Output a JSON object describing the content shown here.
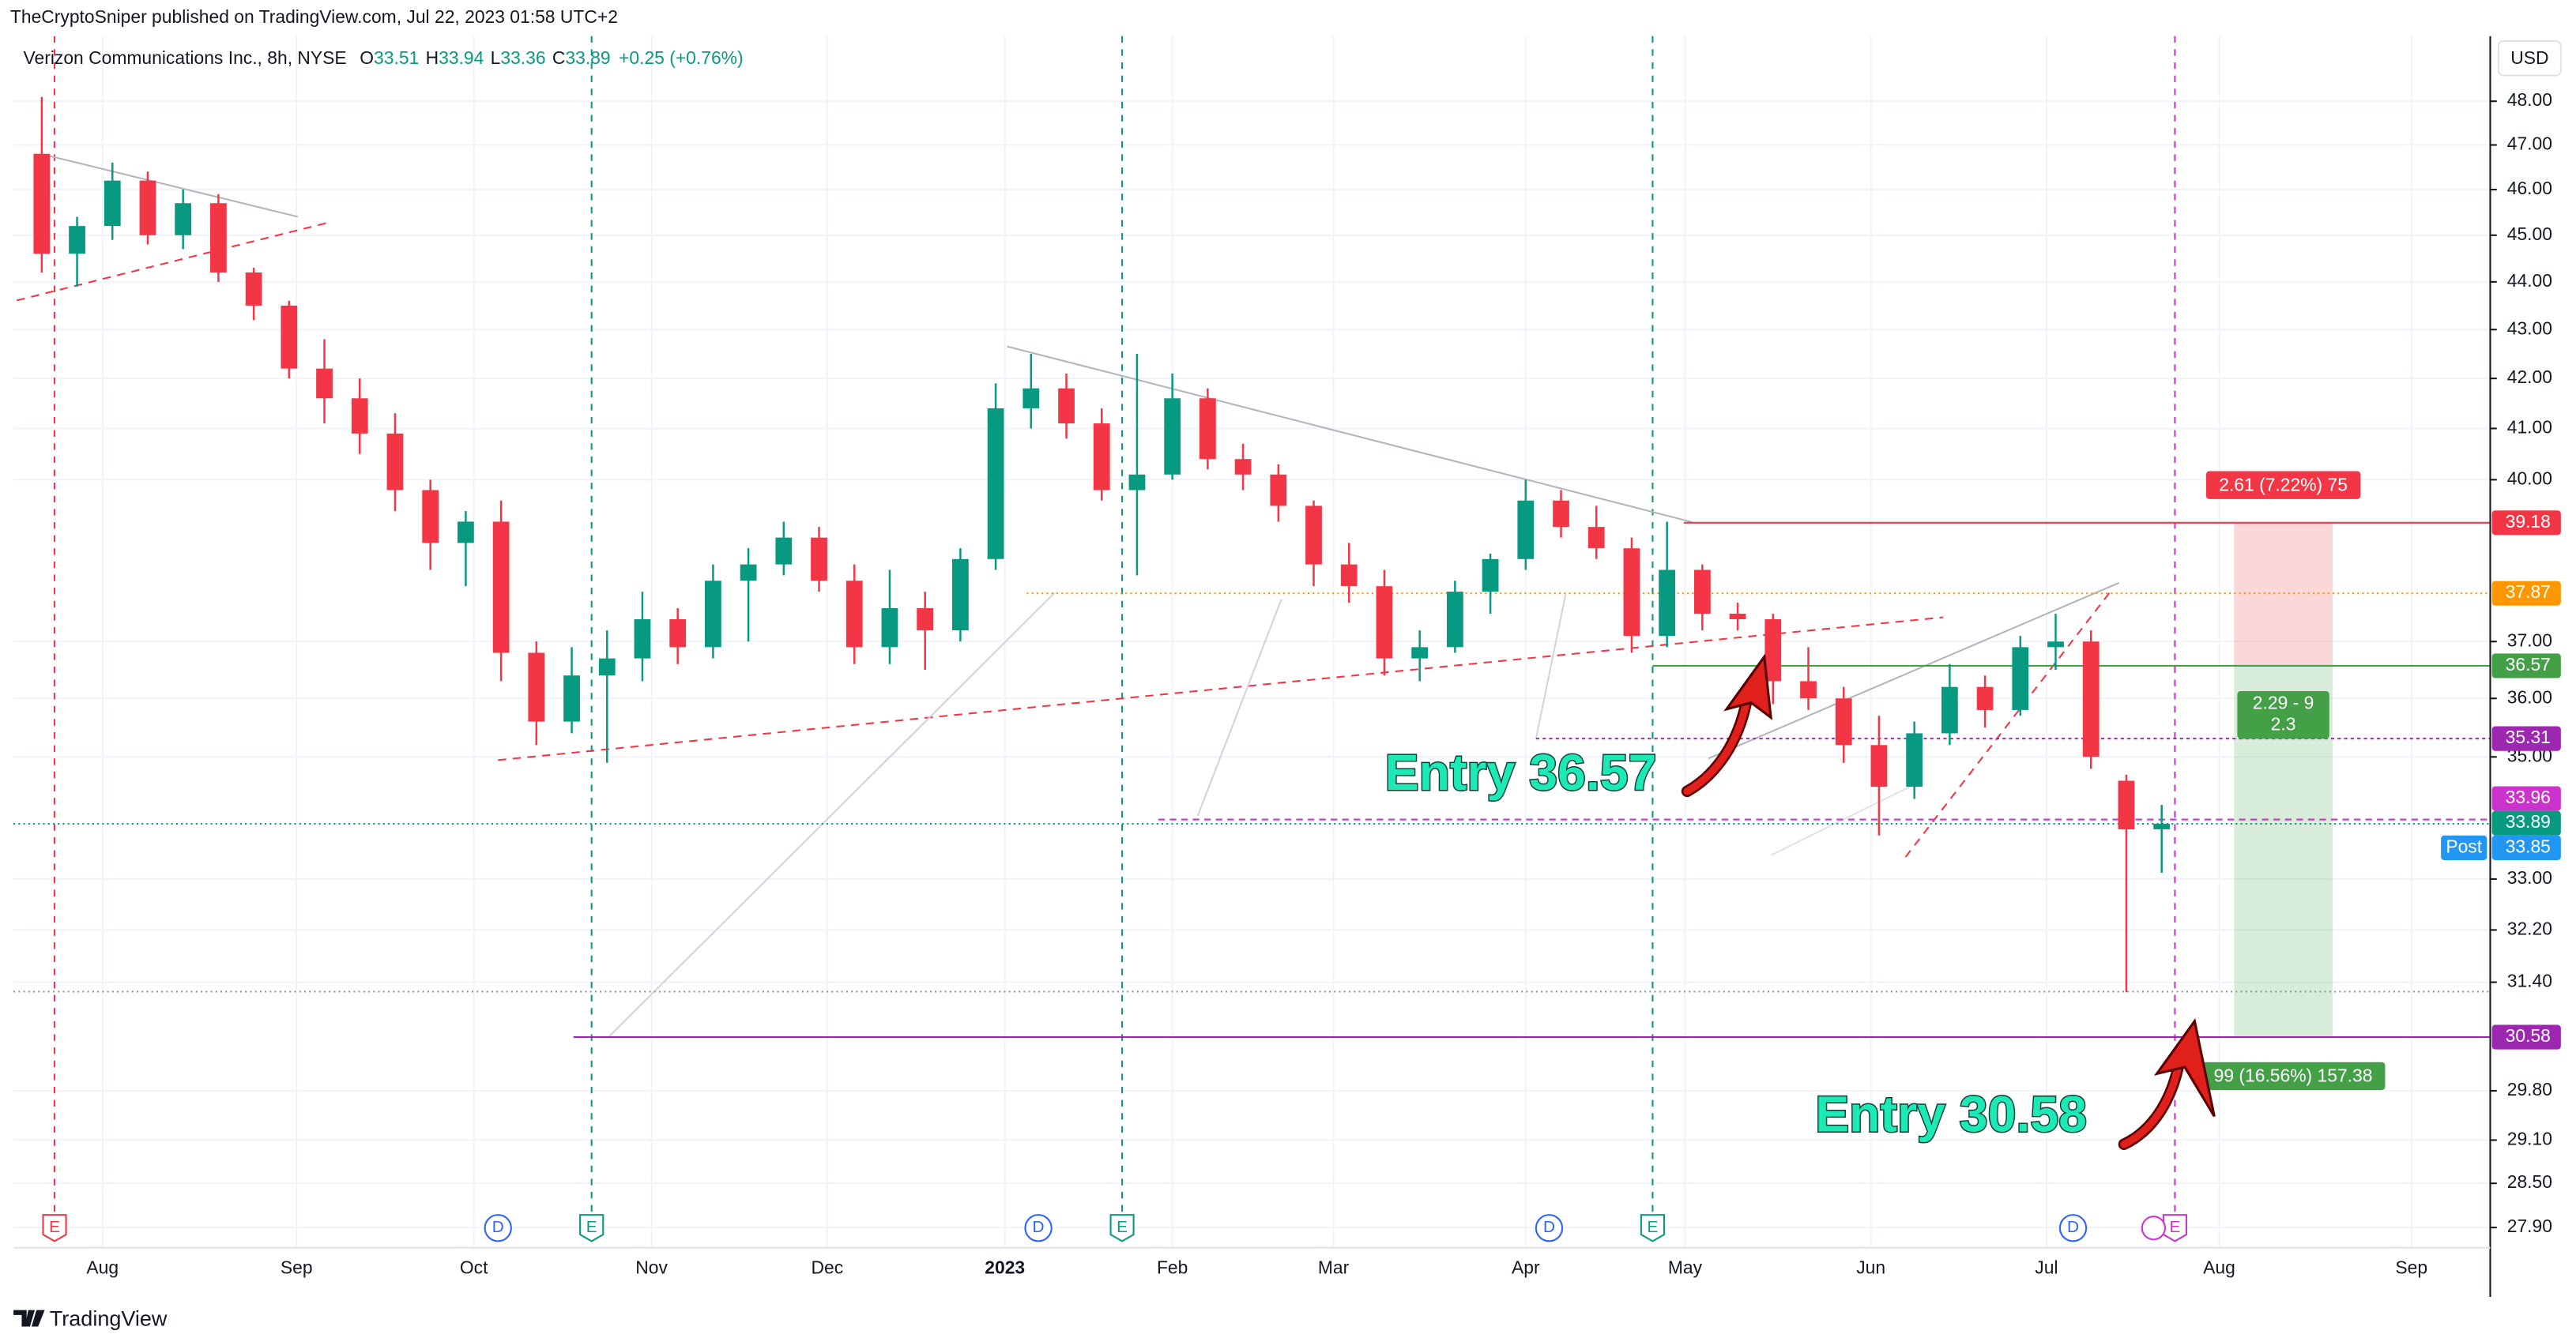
{
  "header": {
    "publisher": "TheCryptoSniper published on TradingView.com, Jul 22, 2023 01:58 UTC+2",
    "symbol": "Verizon Communications Inc., 8h, NYSE",
    "ohlc": [
      {
        "label": "O",
        "value": 33.51
      },
      {
        "label": "H",
        "value": 33.94
      },
      {
        "label": "L",
        "value": 33.36
      },
      {
        "label": "C",
        "value": 33.89
      }
    ],
    "change": "+0.25 (+0.76%)",
    "currency": "USD"
  },
  "chart_data": {
    "type": "candlestick",
    "categories": [
      null,
      null,
      null,
      null,
      null,
      null,
      null,
      null,
      null,
      null,
      null,
      null,
      null,
      null,
      null,
      null,
      null,
      null,
      null,
      null,
      null,
      null,
      null,
      null,
      null,
      null,
      null,
      null,
      null,
      null,
      null,
      null,
      null,
      null,
      null,
      null,
      null,
      null,
      null,
      null,
      null,
      null,
      null,
      null,
      null,
      null,
      null,
      null,
      null,
      null,
      null,
      null,
      null,
      null,
      null,
      null,
      null,
      null,
      null,
      null,
      null
    ],
    "open": [
      46.8,
      44.6,
      45.2,
      46.2,
      45.0,
      45.7,
      44.2,
      43.5,
      42.2,
      41.6,
      40.9,
      39.8,
      38.8,
      39.2,
      36.8,
      35.6,
      36.4,
      36.7,
      37.4,
      36.9,
      38.1,
      38.4,
      38.9,
      38.1,
      36.9,
      37.6,
      37.2,
      38.5,
      41.4,
      41.8,
      41.1,
      39.8,
      40.1,
      41.6,
      40.4,
      40.1,
      39.5,
      38.4,
      38.0,
      36.7,
      36.9,
      37.9,
      38.5,
      39.6,
      39.1,
      38.7,
      37.1,
      38.3,
      37.5,
      37.4,
      36.3,
      36.0,
      35.2,
      34.5,
      35.4,
      36.2,
      35.8,
      36.9,
      37.0,
      34.6,
      33.8
    ],
    "high": [
      48.1,
      45.4,
      46.6,
      46.4,
      46.0,
      45.9,
      44.3,
      43.6,
      42.8,
      42.0,
      41.3,
      40.0,
      39.4,
      39.6,
      37.0,
      36.9,
      37.2,
      37.9,
      37.6,
      38.4,
      38.7,
      39.2,
      39.1,
      38.4,
      38.3,
      37.9,
      38.7,
      41.9,
      42.5,
      42.1,
      41.4,
      42.5,
      42.1,
      41.8,
      40.7,
      40.3,
      39.6,
      38.8,
      38.3,
      37.2,
      38.1,
      38.6,
      40.0,
      39.8,
      39.5,
      38.9,
      39.2,
      38.4,
      37.7,
      37.5,
      36.9,
      36.2,
      35.7,
      35.6,
      36.6,
      36.4,
      37.1,
      37.5,
      37.2,
      34.7,
      34.2
    ],
    "low": [
      44.2,
      43.9,
      44.9,
      44.8,
      44.7,
      44.0,
      43.2,
      42.0,
      41.1,
      40.5,
      39.4,
      38.3,
      38.0,
      36.3,
      35.2,
      35.4,
      34.9,
      36.3,
      36.6,
      36.7,
      37.0,
      38.2,
      37.9,
      36.6,
      36.6,
      36.5,
      37.0,
      38.3,
      41.0,
      40.8,
      39.6,
      38.2,
      40.0,
      40.2,
      39.8,
      39.2,
      38.0,
      37.7,
      36.4,
      36.3,
      36.8,
      37.5,
      38.3,
      38.9,
      38.5,
      36.8,
      36.9,
      37.2,
      37.2,
      35.9,
      35.8,
      34.9,
      33.7,
      34.3,
      35.2,
      35.5,
      35.7,
      36.5,
      34.8,
      31.25,
      33.1
    ],
    "close": [
      44.6,
      45.2,
      46.2,
      45.0,
      45.7,
      44.2,
      43.5,
      42.2,
      41.6,
      40.9,
      39.8,
      38.8,
      39.2,
      36.8,
      35.6,
      36.4,
      36.7,
      37.4,
      36.9,
      38.1,
      38.4,
      38.9,
      38.1,
      36.9,
      37.6,
      37.2,
      38.5,
      41.4,
      41.8,
      41.1,
      39.8,
      40.1,
      41.6,
      40.4,
      40.1,
      39.5,
      38.4,
      38.0,
      36.7,
      36.9,
      37.9,
      38.5,
      39.6,
      39.1,
      38.7,
      37.1,
      38.3,
      37.5,
      37.4,
      36.3,
      36.0,
      35.2,
      34.5,
      35.4,
      36.2,
      35.8,
      36.9,
      37.0,
      35.0,
      33.8,
      33.89
    ],
    "up_color": "#089981",
    "down_color": "#f23645",
    "log_scale": true,
    "grid": true,
    "xlim": [
      -0.8,
      69.3
    ],
    "xticks": [
      {
        "value": 1.72,
        "label": "Aug"
      },
      {
        "value": 7.21,
        "label": "Sep"
      },
      {
        "value": 12.23,
        "label": "Oct"
      },
      {
        "value": 17.26,
        "label": "Nov"
      },
      {
        "value": 22.23,
        "label": "Dec"
      },
      {
        "value": 27.26,
        "label": "2023"
      },
      {
        "value": 32.0,
        "label": "Feb"
      },
      {
        "value": 36.56,
        "label": "Mar"
      },
      {
        "value": 42.0,
        "label": "Apr"
      },
      {
        "value": 46.51,
        "label": "May"
      },
      {
        "value": 51.77,
        "label": "Jun"
      },
      {
        "value": 56.74,
        "label": "Jul"
      },
      {
        "value": 61.63,
        "label": "Aug"
      },
      {
        "value": 67.07,
        "label": "Sep"
      }
    ],
    "ylim": [
      27.63,
      49.53
    ],
    "yticks": [
      {
        "value": 48,
        "label": "48.00"
      },
      {
        "value": 47,
        "label": "47.00"
      },
      {
        "value": 46,
        "label": "46.00"
      },
      {
        "value": 45,
        "label": "45.00"
      },
      {
        "value": 44,
        "label": "44.00"
      },
      {
        "value": 43,
        "label": "43.00"
      },
      {
        "value": 42,
        "label": "42.00"
      },
      {
        "value": 41,
        "label": "41.00"
      },
      {
        "value": 40,
        "label": "40.00"
      },
      {
        "value": 37,
        "label": "37.00"
      },
      {
        "value": 36,
        "label": "36.00"
      },
      {
        "value": 35,
        "label": "35.00"
      },
      {
        "value": 33,
        "label": "33.00"
      },
      {
        "value": 32.2,
        "label": "32.20"
      },
      {
        "value": 31.4,
        "label": "31.40"
      },
      {
        "value": 29.8,
        "label": "29.80"
      },
      {
        "value": 29.1,
        "label": "29.10"
      },
      {
        "value": 28.5,
        "label": "28.50"
      },
      {
        "value": 27.9,
        "label": "27.90"
      }
    ],
    "price_labels": [
      {
        "value": 39.18,
        "color": "#f23645"
      },
      {
        "value": 37.87,
        "color": "#ff9800"
      },
      {
        "value": 36.57,
        "color": "#43a047"
      },
      {
        "value": 35.31,
        "color": "#9c27b0"
      },
      {
        "value": 33.96,
        "color": "#cc33cc"
      },
      {
        "value": 33.89,
        "color": "#089981"
      },
      {
        "value": 33.85,
        "color": "#2196f3",
        "tag": "Post"
      },
      {
        "value": 30.58,
        "color": "#9c27b0"
      }
    ],
    "annotations": {
      "target": "2.61 (7.22%) 75",
      "ratio_line1": "2.29 - 9",
      "ratio_line2": "2.3",
      "stop": "99 (16.56%) 157.38",
      "entry_upper": "Entry 36.57",
      "entry_lower": "Entry 30.58"
    },
    "events": [
      {
        "label": "E",
        "color": "#f23645"
      },
      {
        "label": "D",
        "color": "#2962ff"
      },
      {
        "label": "E",
        "color": "#089981"
      },
      {
        "label": "D",
        "color": "#2962ff"
      },
      {
        "label": "E",
        "color": "#089981"
      },
      {
        "label": "D",
        "color": "#2962ff"
      },
      {
        "label": "E",
        "color": "#089981"
      },
      {
        "label": "D",
        "color": "#2962ff"
      },
      {
        "label": "E",
        "color": "#cc33cc"
      }
    ]
  },
  "footer": {
    "brand": "TradingView"
  }
}
